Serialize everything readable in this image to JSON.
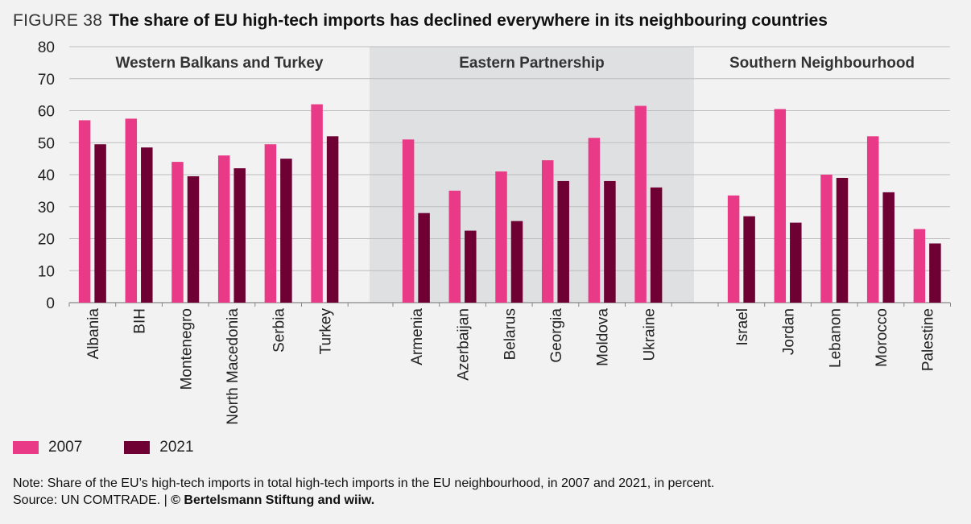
{
  "header": {
    "figure_label": "FIGURE 38",
    "title": "The share of EU high-tech imports has declined everywhere in its neighbouring countries"
  },
  "colors": {
    "series_2007": "#e83a86",
    "series_2021": "#6e0034",
    "shade": "#dfe0e2",
    "grid": "#bdbdbd"
  },
  "chart_data": {
    "type": "bar",
    "ylim": [
      0,
      80
    ],
    "yticks": [
      "0",
      "10",
      "20",
      "30",
      "40",
      "50",
      "60",
      "70",
      "80"
    ],
    "grid": true,
    "legend_position": "bottom-left",
    "groups": [
      {
        "name": "Western Balkans and Turkey",
        "shaded": false,
        "categories": [
          "Albania",
          "BIH",
          "Montenegro",
          "North Macedonia",
          "Serbia",
          "Turkey"
        ]
      },
      {
        "name": "Eastern Partnership",
        "shaded": true,
        "categories": [
          "Armenia",
          "Azerbaijan",
          "Belarus",
          "Georgia",
          "Moldova",
          "Ukraine"
        ]
      },
      {
        "name": "Southern Neighbourhood",
        "shaded": false,
        "categories": [
          "Israel",
          "Jordan",
          "Lebanon",
          "Morocco",
          "Palestine"
        ]
      }
    ],
    "series": [
      {
        "name": "2007",
        "values": [
          57,
          57.5,
          44,
          46,
          49.5,
          62,
          51,
          35,
          41,
          44.5,
          51.5,
          61.5,
          33.5,
          60.5,
          40,
          52,
          23
        ]
      },
      {
        "name": "2021",
        "values": [
          49.5,
          48.5,
          39.5,
          42,
          45,
          52,
          28,
          22.5,
          25.5,
          38,
          38,
          36,
          27,
          25,
          39,
          34.5,
          18.5
        ]
      }
    ]
  },
  "legend": {
    "items": [
      {
        "label": "2007"
      },
      {
        "label": "2021"
      }
    ]
  },
  "footer": {
    "note": "Note: Share of the EU’s high-tech imports in total high-tech imports in the EU neighbourhood, in 2007 and 2021, in percent.",
    "source_prefix": "Source: UN COMTRADE.  |  ",
    "source_bold": "© Bertelsmann Stiftung and wiiw."
  }
}
